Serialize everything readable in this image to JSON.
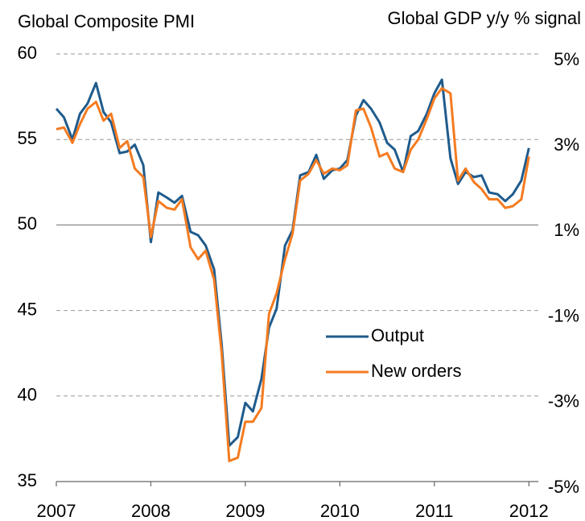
{
  "chart_data": {
    "type": "line",
    "y_label": "Global Composite PMI",
    "y2_label": "Global GDP y/y % signal",
    "x": [
      2007.0,
      2007.08,
      2007.17,
      2007.25,
      2007.33,
      2007.42,
      2007.5,
      2007.58,
      2007.67,
      2007.75,
      2007.83,
      2007.92,
      2008.0,
      2008.08,
      2008.17,
      2008.25,
      2008.33,
      2008.42,
      2008.5,
      2008.58,
      2008.67,
      2008.75,
      2008.83,
      2008.92,
      2009.0,
      2009.08,
      2009.17,
      2009.25,
      2009.33,
      2009.42,
      2009.5,
      2009.58,
      2009.67,
      2009.75,
      2009.83,
      2009.92,
      2010.0,
      2010.08,
      2010.17,
      2010.25,
      2010.33,
      2010.42,
      2010.5,
      2010.58,
      2010.67,
      2010.75,
      2010.83,
      2010.92,
      2011.0,
      2011.08,
      2011.17,
      2011.25,
      2011.33,
      2011.42,
      2011.5,
      2011.58,
      2011.67,
      2011.75,
      2011.83,
      2011.92,
      2012.0
    ],
    "series": [
      {
        "name": "Output",
        "color": "#1f5b8c",
        "values": [
          56.8,
          56.3,
          55.0,
          56.5,
          57.1,
          58.3,
          56.6,
          56.0,
          54.2,
          54.3,
          54.7,
          53.5,
          49.0,
          51.9,
          51.6,
          51.3,
          51.7,
          49.6,
          49.4,
          48.8,
          47.4,
          43.0,
          37.1,
          37.6,
          39.6,
          39.1,
          41.0,
          44.0,
          45.1,
          48.8,
          49.7,
          52.9,
          53.1,
          54.1,
          52.7,
          53.2,
          53.3,
          53.8,
          56.4,
          57.3,
          56.8,
          56.0,
          54.8,
          54.4,
          53.1,
          55.2,
          55.5,
          56.5,
          57.7,
          58.5,
          53.9,
          52.4,
          53.1,
          52.8,
          52.9,
          51.9,
          51.8,
          51.4,
          51.8,
          52.6,
          54.5
        ]
      },
      {
        "name": "New orders",
        "color": "#f47b20",
        "values": [
          55.6,
          55.7,
          54.8,
          55.9,
          56.8,
          57.2,
          56.1,
          56.5,
          54.5,
          54.9,
          53.3,
          52.8,
          49.3,
          51.4,
          51.0,
          50.9,
          51.5,
          48.7,
          48.0,
          48.5,
          46.8,
          42.5,
          36.2,
          36.4,
          38.5,
          38.5,
          39.3,
          44.8,
          46.0,
          48.0,
          49.5,
          52.6,
          53.0,
          53.8,
          53.0,
          53.3,
          53.2,
          53.5,
          56.7,
          56.8,
          55.7,
          54.0,
          54.2,
          53.3,
          53.1,
          54.4,
          55.0,
          56.2,
          57.4,
          58.0,
          57.7,
          52.6,
          53.3,
          52.5,
          52.1,
          51.5,
          51.5,
          51.0,
          51.1,
          51.5,
          54.0
        ]
      }
    ],
    "xlim": [
      2007,
      2012.1
    ],
    "xticks": [
      2007,
      2008,
      2009,
      2010,
      2011,
      2012
    ],
    "ylim": [
      35,
      60
    ],
    "yticks": [
      35,
      40,
      45,
      50,
      55,
      60
    ],
    "y2lim": [
      -5,
      5
    ],
    "y2ticks": [
      {
        "value": -5,
        "label": "-5%"
      },
      {
        "value": -3,
        "label": "-3%"
      },
      {
        "value": -1,
        "label": "-1%"
      },
      {
        "value": 1,
        "label": "1%"
      },
      {
        "value": 3,
        "label": "3%"
      },
      {
        "value": 5,
        "label": "5%"
      }
    ],
    "reference_line": 50,
    "grid": true,
    "legend": "center right"
  }
}
